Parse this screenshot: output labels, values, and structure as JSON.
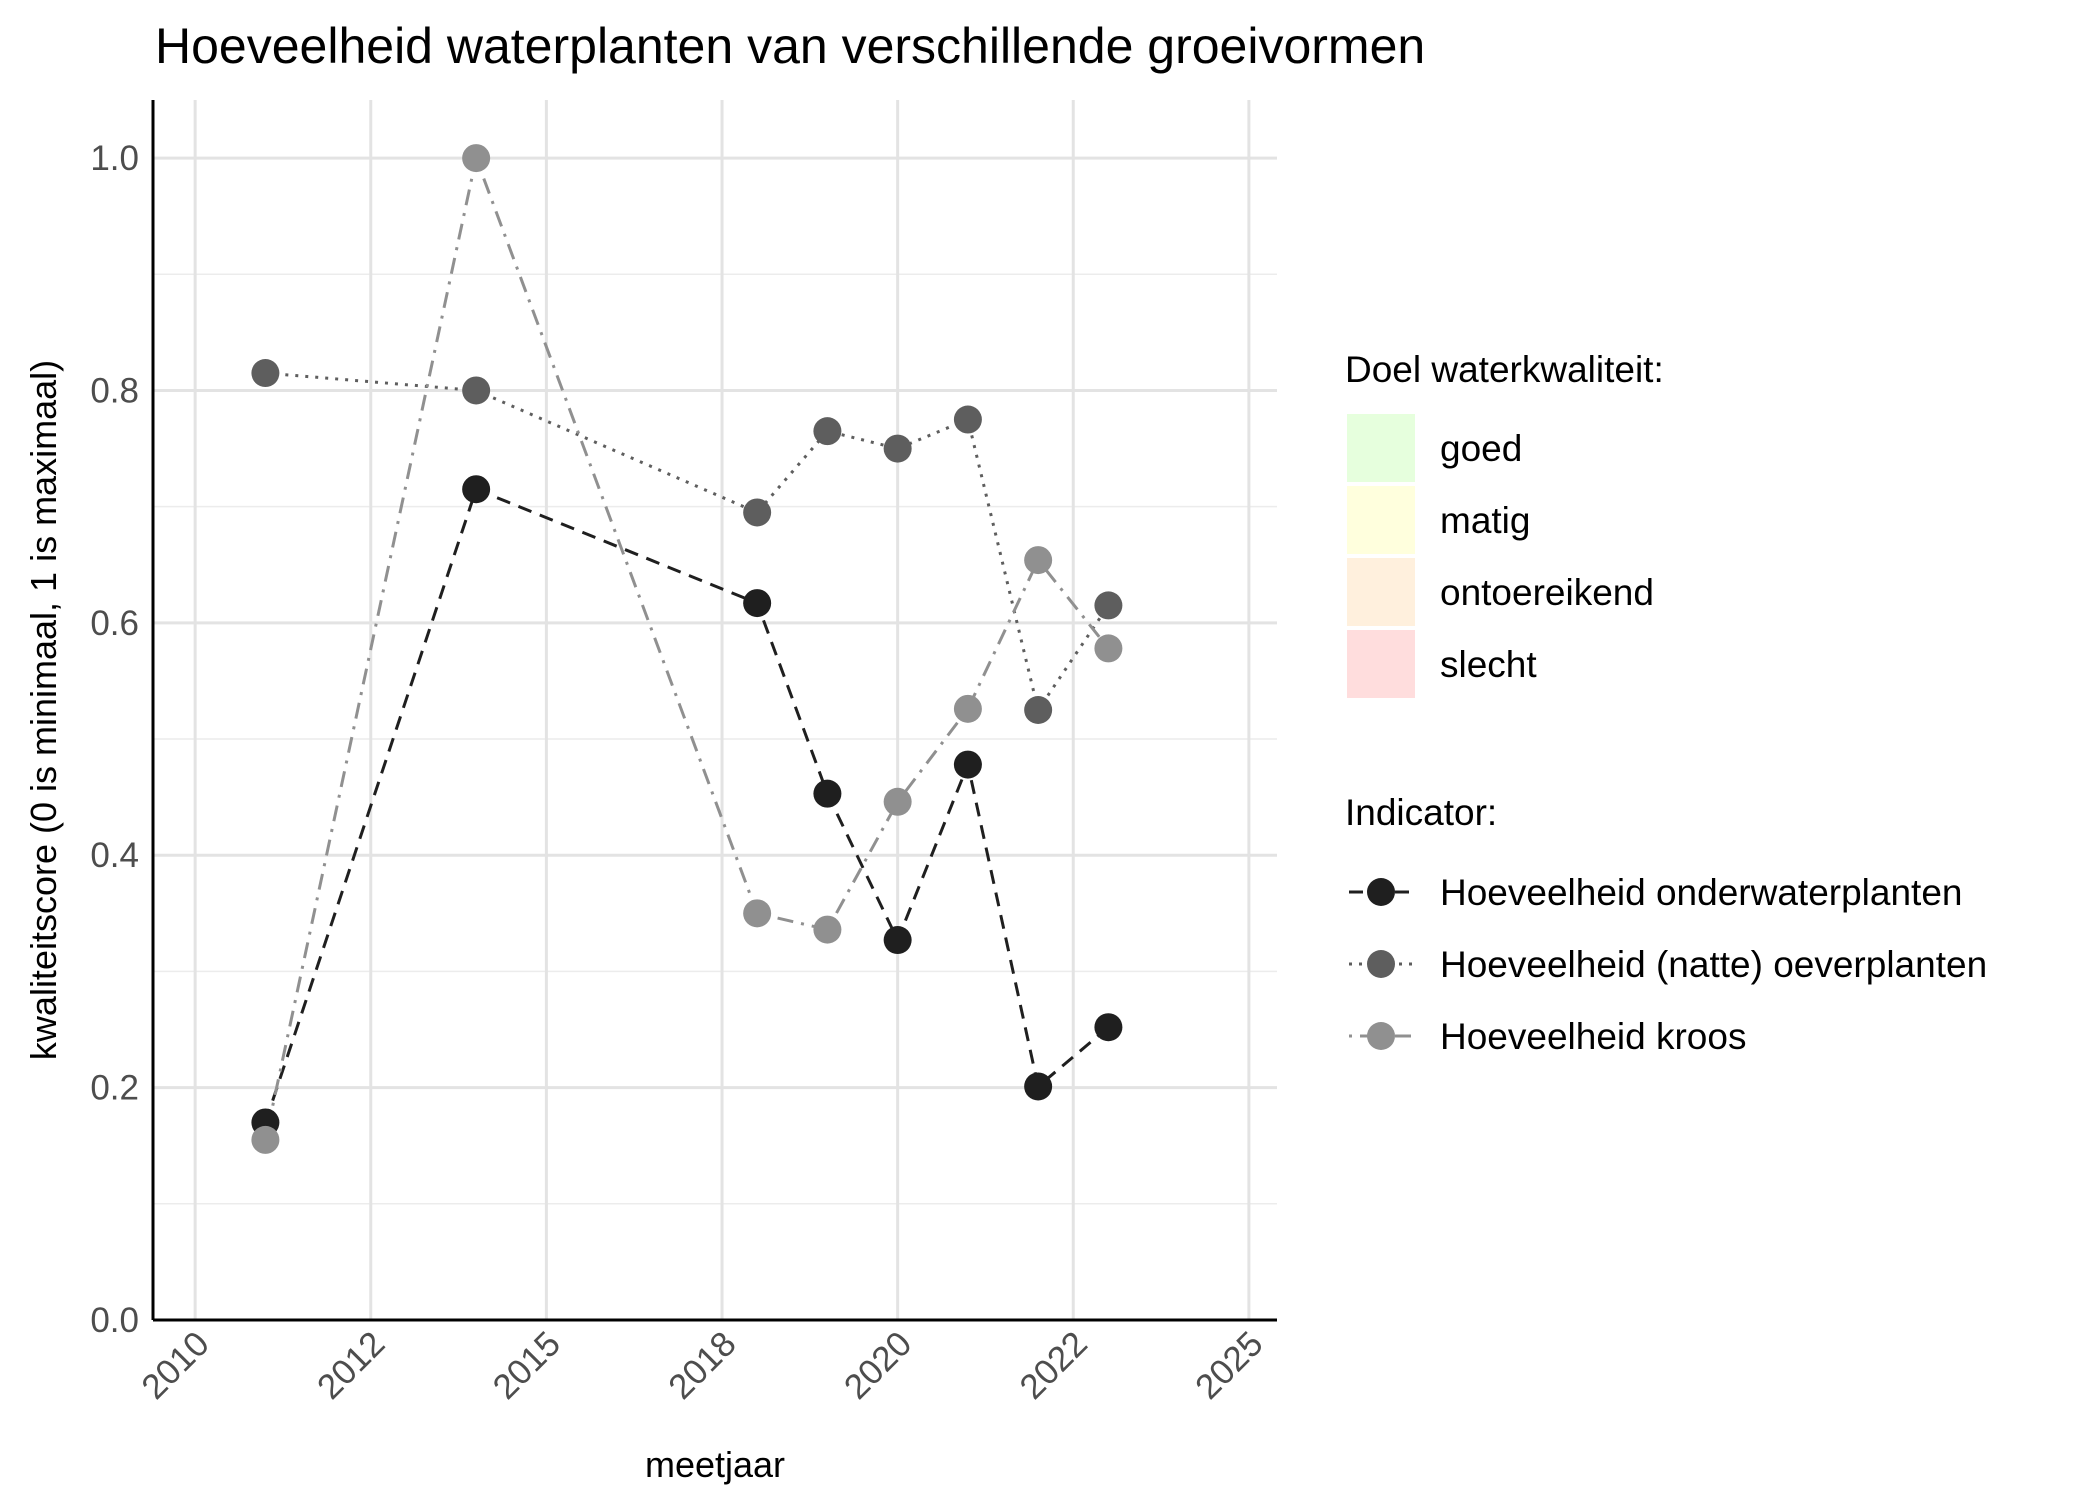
{
  "chart_data": {
    "type": "line",
    "title": "Hoeveelheid waterplanten van verschillende groeivormen",
    "xlabel": "meetjaar",
    "ylabel": "kwaliteitscore (0 is minimaal, 1 is maximaal)",
    "xlim": [
      2009.4,
      2025.4
    ],
    "ylim": [
      0,
      1.05
    ],
    "x_ticks": [
      2010,
      2012.5,
      2015,
      2017.5,
      2020,
      2022.5,
      2025
    ],
    "x_tick_labels": [
      "2010",
      "2012",
      "2015",
      "2018",
      "2020",
      "2022",
      "2025"
    ],
    "y_ticks": [
      0,
      0.2,
      0.4,
      0.6,
      0.8,
      1.0
    ],
    "y_tick_labels": [
      "0.0",
      "0.2",
      "0.4",
      "0.6",
      "0.8",
      "1.0"
    ],
    "grid": true,
    "legend_position": "right",
    "series": [
      {
        "name": "Hoeveelheid onderwaterplanten",
        "color": "#1f1f1f",
        "line_style": "dashed",
        "x": [
          2011,
          2014,
          2018,
          2019,
          2020,
          2021,
          2022,
          2023
        ],
        "y": [
          0.17,
          0.715,
          0.617,
          0.453,
          0.327,
          0.478,
          0.201,
          0.252
        ]
      },
      {
        "name": "Hoeveelheid (natte) oeverplanten",
        "color": "#5e5e5e",
        "line_style": "dotted",
        "x": [
          2011,
          2014,
          2018,
          2019,
          2020,
          2021,
          2022,
          2023
        ],
        "y": [
          0.815,
          0.8,
          0.695,
          0.765,
          0.75,
          0.775,
          0.525,
          0.615
        ]
      },
      {
        "name": "Hoeveelheid kroos",
        "color": "#909090",
        "line_style": "dotdash",
        "x": [
          2011,
          2014,
          2018,
          2019,
          2020,
          2021,
          2022,
          2023
        ],
        "y": [
          0.155,
          1.0,
          0.35,
          0.336,
          0.446,
          0.526,
          0.654,
          0.578
        ]
      }
    ]
  },
  "legend": {
    "doel_title": "Doel waterkwaliteit:",
    "doel_items": [
      {
        "label": "goed",
        "color": "#e6ffdd"
      },
      {
        "label": "matig",
        "color": "#ffffdd"
      },
      {
        "label": "ontoereikend",
        "color": "#fff0dd"
      },
      {
        "label": "slecht",
        "color": "#ffdddd"
      }
    ],
    "indicator_title": "Indicator:"
  }
}
